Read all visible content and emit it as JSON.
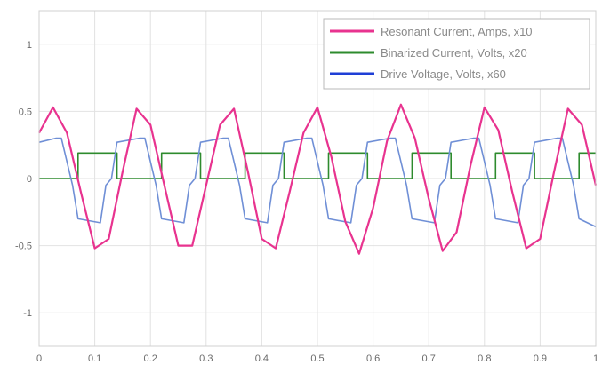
{
  "chart_data": {
    "type": "line",
    "title": "",
    "xlabel": "",
    "ylabel": "",
    "xlim": [
      0,
      1
    ],
    "ylim": [
      -1.25,
      1.25
    ],
    "grid": true,
    "legend_position": "top-right",
    "x_ticks": [
      0,
      0.1,
      0.2,
      0.3,
      0.4,
      0.5,
      0.6,
      0.7,
      0.8,
      0.9,
      1
    ],
    "x_tick_labels": [
      "0",
      "0.1",
      "0.2",
      "0.3",
      "0.4",
      "0.5",
      "0.6",
      "0.7",
      "0.8",
      "0.9",
      "1"
    ],
    "y_ticks": [
      1,
      0.5,
      0,
      -0.5,
      -1
    ],
    "y_tick_labels": [
      "1",
      "0.5",
      "0",
      "-0.5",
      "-1"
    ],
    "series": [
      {
        "name": "Resonant Current, Amps, x10",
        "color": "#e8338f",
        "x": [
          0,
          0.025,
          0.05,
          0.075,
          0.1,
          0.125,
          0.15,
          0.175,
          0.2,
          0.225,
          0.25,
          0.275,
          0.3,
          0.325,
          0.35,
          0.375,
          0.4,
          0.425,
          0.45,
          0.475,
          0.5,
          0.525,
          0.55,
          0.575,
          0.6,
          0.625,
          0.65,
          0.675,
          0.7,
          0.725,
          0.75,
          0.775,
          0.8,
          0.825,
          0.85,
          0.875,
          0.9,
          0.925,
          0.95,
          0.975,
          1
        ],
        "y": [
          0.34,
          0.53,
          0.34,
          -0.1,
          -0.52,
          -0.45,
          0.05,
          0.52,
          0.4,
          -0.05,
          -0.5,
          -0.5,
          -0.05,
          0.4,
          0.52,
          0.05,
          -0.45,
          -0.52,
          -0.1,
          0.34,
          0.53,
          0.16,
          -0.32,
          -0.56,
          -0.22,
          0.28,
          0.55,
          0.3,
          -0.15,
          -0.54,
          -0.4,
          0.1,
          0.53,
          0.36,
          -0.1,
          -0.52,
          -0.45,
          0.05,
          0.52,
          0.4,
          -0.05
        ]
      },
      {
        "name": "Binarized Current, Volts, x20",
        "color": "#2e8b2e",
        "x": [
          0,
          0.07,
          0.07,
          0.14,
          0.14,
          0.22,
          0.22,
          0.29,
          0.29,
          0.37,
          0.37,
          0.44,
          0.44,
          0.52,
          0.52,
          0.59,
          0.59,
          0.67,
          0.67,
          0.74,
          0.74,
          0.82,
          0.82,
          0.89,
          0.89,
          0.97,
          0.97,
          1
        ],
        "y": [
          0,
          0,
          0.19,
          0.19,
          0,
          0,
          0.19,
          0.19,
          0,
          0,
          0.19,
          0.19,
          0,
          0,
          0.19,
          0.19,
          0,
          0,
          0.19,
          0.19,
          0,
          0,
          0.19,
          0.19,
          0,
          0,
          0.19,
          0.19
        ]
      },
      {
        "name": "Drive Voltage, Volts, x60",
        "color": "#6f8fd6",
        "x": [
          0,
          0.03,
          0.04,
          0.06,
          0.07,
          0.11,
          0.12,
          0.13,
          0.14,
          0.18,
          0.19,
          0.21,
          0.22,
          0.26,
          0.27,
          0.28,
          0.29,
          0.33,
          0.34,
          0.36,
          0.37,
          0.41,
          0.42,
          0.43,
          0.44,
          0.48,
          0.49,
          0.51,
          0.52,
          0.56,
          0.57,
          0.58,
          0.59,
          0.63,
          0.64,
          0.66,
          0.67,
          0.71,
          0.72,
          0.73,
          0.74,
          0.78,
          0.79,
          0.81,
          0.82,
          0.86,
          0.87,
          0.88,
          0.89,
          0.93,
          0.94,
          0.96,
          0.97,
          1
        ],
        "y": [
          0.27,
          0.3,
          0.3,
          -0.05,
          -0.3,
          -0.33,
          -0.05,
          0,
          0.27,
          0.3,
          0.3,
          -0.05,
          -0.3,
          -0.33,
          -0.05,
          0,
          0.27,
          0.3,
          0.3,
          -0.05,
          -0.3,
          -0.33,
          -0.05,
          0,
          0.27,
          0.3,
          0.3,
          -0.05,
          -0.3,
          -0.33,
          -0.05,
          0,
          0.27,
          0.3,
          0.3,
          -0.05,
          -0.3,
          -0.33,
          -0.05,
          0,
          0.27,
          0.3,
          0.3,
          -0.05,
          -0.3,
          -0.33,
          -0.05,
          0,
          0.27,
          0.3,
          0.3,
          -0.05,
          -0.3,
          -0.36
        ]
      }
    ],
    "legend_line_colors": [
      "#e8338f",
      "#2e8b2e",
      "#1f3fd6"
    ]
  }
}
